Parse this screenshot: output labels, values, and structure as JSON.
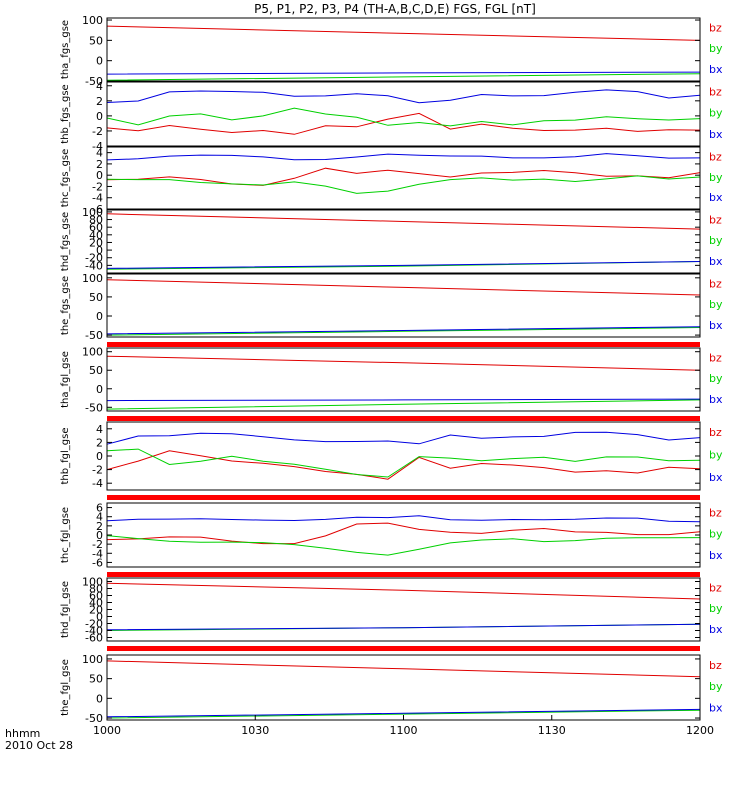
{
  "title": "P5, P1, P2, P3, P4 (TH-A,B,C,D,E) FGS, FGL [nT]",
  "colors": {
    "bz": "#e00000",
    "by": "#00d000",
    "bx": "#0000e0",
    "bar": "#ff0000",
    "frame": "#000000"
  },
  "footer": {
    "unit_label": "hhmm",
    "date_label": "2010 Oct 28"
  },
  "chart_data": {
    "type": "line",
    "x_axis": {
      "range": [
        "1000",
        "1200"
      ],
      "ticks": [
        "1000",
        "1030",
        "1100",
        "1130",
        "1200"
      ]
    },
    "panels": [
      {
        "ylabel": "tha_fgs_gse",
        "ylim": [
          -50,
          105
        ],
        "yticks": [
          "100",
          "50",
          "0",
          "-50"
        ],
        "series": [
          {
            "name": "bz",
            "values": [
              85,
              67,
              50
            ]
          },
          {
            "name": "by",
            "values": [
              -48,
              -40,
              -32
            ]
          },
          {
            "name": "bx",
            "values": [
              -33,
              -30,
              -28
            ]
          }
        ],
        "legend": [
          "bz",
          "by",
          "bx"
        ],
        "bar_below": false
      },
      {
        "ylabel": "thb_fgs_gse",
        "ylim": [
          -4,
          4.5
        ],
        "yticks": [
          "4",
          "2",
          "0",
          "-2",
          "-4"
        ],
        "series": [
          {
            "name": "bz",
            "values": [
              -1.6,
              -2.2,
              -1.5,
              -1.8,
              -2.0,
              -1.7,
              -2.4,
              -1.5,
              -1.7,
              -0.5,
              0.5,
              -1.5,
              -1.0,
              -1.8,
              -2.2,
              -2.0,
              -1.5,
              -1.8,
              -1.7,
              -2.0
            ]
          },
          {
            "name": "by",
            "values": [
              -0.5,
              -1.2,
              0.2,
              0.5,
              -0.5,
              -0.2,
              0.8,
              0.2,
              0.0,
              -1.0,
              -0.8,
              -1.5,
              -1.0,
              -1.3,
              -0.5,
              -0.3,
              0.0,
              -0.5,
              -0.8,
              -0.5
            ]
          },
          {
            "name": "bx",
            "values": [
              2.0,
              2.2,
              3.2,
              3.1,
              3.0,
              3.1,
              2.8,
              2.9,
              3.0,
              2.5,
              1.5,
              2.0,
              3.0,
              2.9,
              2.8,
              3.0,
              3.2,
              3.1,
              2.5,
              3.0
            ]
          }
        ],
        "legend": [
          "bz",
          "by",
          "bx"
        ],
        "bar_below": false
      },
      {
        "ylabel": "thc_fgs_gse",
        "ylim": [
          -6,
          5
        ],
        "yticks": [
          "4",
          "2",
          "0",
          "-2",
          "-4",
          "-6"
        ],
        "series": [
          {
            "name": "bz",
            "values": [
              -0.8,
              -1.0,
              -0.6,
              -0.8,
              -1.3,
              -1.5,
              -0.5,
              1.0,
              0.0,
              0.8,
              0.5,
              0.0,
              0.5,
              0.3,
              0.5,
              0.3,
              0.0,
              0.2,
              -0.3,
              0.3
            ]
          },
          {
            "name": "by",
            "values": [
              -1.0,
              -0.8,
              -0.5,
              -1.0,
              -1.5,
              -2.0,
              -1.5,
              -2.0,
              -3.0,
              -2.5,
              -1.5,
              -1.0,
              -0.8,
              -1.0,
              -0.5,
              -0.8,
              -0.5,
              -0.3,
              -1.0,
              -0.5
            ]
          },
          {
            "name": "bx",
            "values": [
              3.0,
              3.2,
              3.4,
              3.3,
              3.2,
              3.2,
              3.0,
              3.1,
              3.3,
              3.5,
              3.2,
              3.3,
              3.6,
              3.4,
              3.2,
              3.1,
              3.5,
              3.3,
              3.2,
              3.4
            ]
          }
        ],
        "legend": [
          "bz",
          "by",
          "bx"
        ],
        "bar_below": false
      },
      {
        "ylabel": "thd_fgs_gse",
        "ylim": [
          -60,
          105
        ],
        "yticks": [
          "100",
          "80",
          "60",
          "40",
          "20",
          "0",
          "-20",
          "-40"
        ],
        "series": [
          {
            "name": "bz",
            "values": [
              95,
              75,
              55
            ]
          },
          {
            "name": "by",
            "values": [
              -50,
              -42,
              -30
            ]
          },
          {
            "name": "bx",
            "values": [
              -48,
              -40,
              -30
            ]
          }
        ],
        "legend": [
          "bz",
          "by",
          "bx"
        ],
        "bar_below": false
      },
      {
        "ylabel": "the_fgs_gse",
        "ylim": [
          -55,
          110
        ],
        "yticks": [
          "100",
          "50",
          "0",
          "-50"
        ],
        "series": [
          {
            "name": "bz",
            "values": [
              95,
              75,
              55
            ]
          },
          {
            "name": "by",
            "values": [
              -50,
              -40,
              -30
            ]
          },
          {
            "name": "bx",
            "values": [
              -47,
              -38,
              -28
            ]
          }
        ],
        "legend": [
          "bz",
          "by",
          "bx"
        ],
        "bar_below": true
      },
      {
        "ylabel": "tha_fgl_gse",
        "ylim": [
          -60,
          110
        ],
        "yticks": [
          "100",
          "50",
          "0",
          "-50"
        ],
        "series": [
          {
            "name": "bz",
            "values": [
              88,
              70,
              50
            ]
          },
          {
            "name": "by",
            "values": [
              -55,
              -42,
              -30
            ]
          },
          {
            "name": "bx",
            "values": [
              -32,
              -30,
              -28
            ]
          }
        ],
        "legend": [
          "bz",
          "by",
          "bx"
        ],
        "bar_below": true
      },
      {
        "ylabel": "thb_fgl_gse",
        "ylim": [
          -5,
          5
        ],
        "yticks": [
          "4",
          "2",
          "0",
          "-2",
          "-4"
        ],
        "series": [
          {
            "name": "bz",
            "values": [
              -2.0,
              -1.0,
              0.5,
              0.0,
              -0.5,
              -0.8,
              -1.5,
              -2.5,
              -3.0,
              -3.5,
              0.0,
              -1.5,
              -1.0,
              -1.5,
              -2.0,
              -2.5,
              -2.0,
              -2.2,
              -1.5,
              -2.0
            ]
          },
          {
            "name": "by",
            "values": [
              0.5,
              1.0,
              -1.0,
              -0.5,
              0.0,
              -1.0,
              -1.5,
              -2.0,
              -2.5,
              -2.8,
              0.0,
              -0.5,
              -1.0,
              -0.5,
              0.0,
              -0.5,
              0.0,
              -0.3,
              -1.0,
              -0.8
            ]
          },
          {
            "name": "bx",
            "values": [
              2.0,
              3.2,
              3.0,
              3.1,
              3.0,
              2.8,
              2.6,
              2.4,
              2.2,
              2.0,
              1.5,
              3.0,
              2.8,
              3.1,
              3.0,
              3.3,
              3.2,
              3.0,
              2.5,
              3.0
            ]
          }
        ],
        "legend": [
          "bz",
          "by",
          "bx"
        ],
        "bar_below": true
      },
      {
        "ylabel": "thc_fgl_gse",
        "ylim": [
          -7,
          7
        ],
        "yticks": [
          "6",
          "4",
          "2",
          "0",
          "-2",
          "-4",
          "-6"
        ],
        "series": [
          {
            "name": "bz",
            "values": [
              -1.0,
              -1.2,
              -0.8,
              -0.5,
              -1.0,
              -1.5,
              -1.8,
              -0.5,
              2.0,
              2.5,
              1.5,
              1.0,
              0.5,
              0.8,
              1.0,
              0.5,
              0.8,
              0.5,
              0.3,
              0.5
            ]
          },
          {
            "name": "by",
            "values": [
              -0.5,
              -0.8,
              -1.0,
              -1.2,
              -1.5,
              -2.0,
              -2.5,
              -3.0,
              -3.5,
              -4.0,
              -3.0,
              -2.0,
              -1.5,
              -1.0,
              -1.2,
              -0.8,
              -0.5,
              -0.8,
              -1.0,
              -0.8
            ]
          },
          {
            "name": "bx",
            "values": [
              3.5,
              3.8,
              3.5,
              3.2,
              3.0,
              3.2,
              3.5,
              3.8,
              4.0,
              3.5,
              3.8,
              3.2,
              3.5,
              3.8,
              3.5,
              3.2,
              3.3,
              3.5,
              3.2,
              3.3
            ]
          }
        ],
        "legend": [
          "bz",
          "by",
          "bx"
        ],
        "bar_below": true
      },
      {
        "ylabel": "thd_fgl_gse",
        "ylim": [
          -70,
          110
        ],
        "yticks": [
          "100",
          "80",
          "60",
          "40",
          "20",
          "0",
          "-20",
          "-40",
          "-60"
        ],
        "series": [
          {
            "name": "bz",
            "values": [
              95,
              75,
              50
            ]
          },
          {
            "name": "by",
            "values": [
              -40,
              -32,
              -22
            ]
          },
          {
            "name": "bx",
            "values": [
              -38,
              -32,
              -22
            ]
          }
        ],
        "legend": [
          "bz",
          "by",
          "bx"
        ],
        "bar_below": true
      },
      {
        "ylabel": "the_fgl_gse",
        "ylim": [
          -55,
          110
        ],
        "yticks": [
          "100",
          "50",
          "0",
          "-50"
        ],
        "series": [
          {
            "name": "bz",
            "values": [
              95,
              75,
              55
            ]
          },
          {
            "name": "by",
            "values": [
              -50,
              -40,
              -30
            ]
          },
          {
            "name": "bx",
            "values": [
              -47,
              -38,
              -28
            ]
          }
        ],
        "legend": [
          "bz",
          "by",
          "bx"
        ],
        "bar_below": false
      }
    ],
    "grid": false,
    "legend_placement": "right of each panel"
  }
}
